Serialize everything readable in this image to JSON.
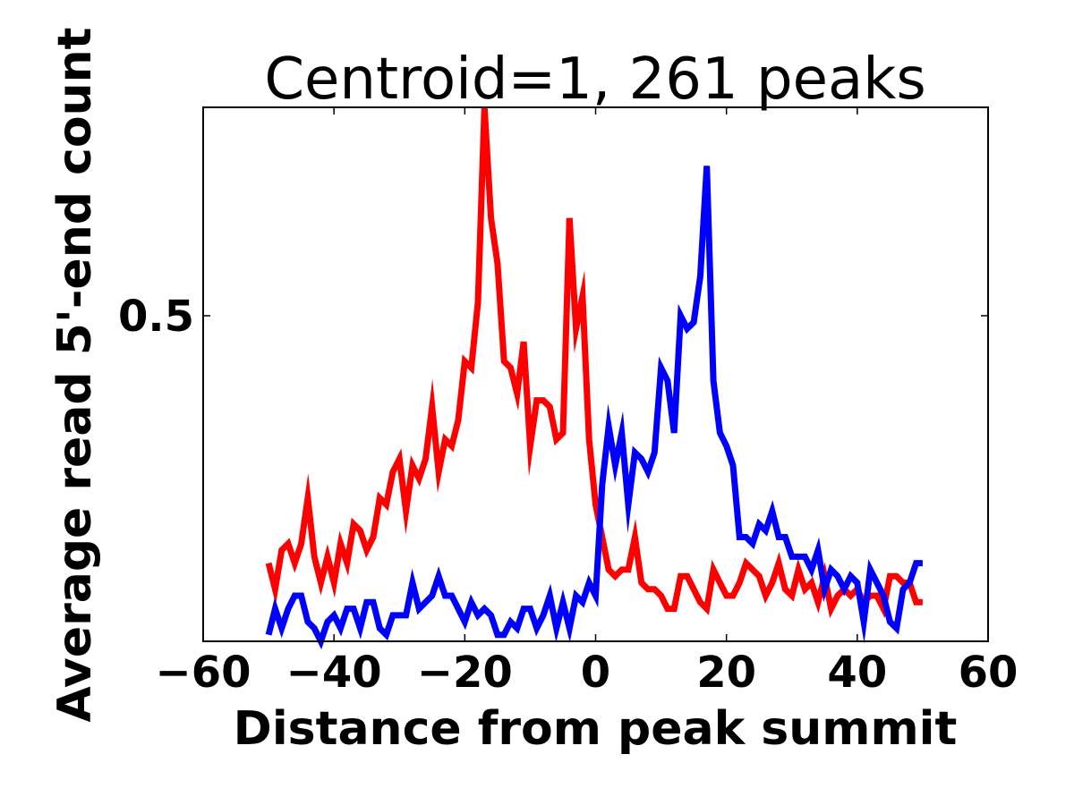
{
  "chart_data": {
    "type": "line",
    "title": "Centroid=1, 261 peaks",
    "xlabel": "Distance from peak summit",
    "ylabel": "Average read 5'-end count",
    "xlim": [
      -60,
      60
    ],
    "ylim": [
      0.0,
      0.82
    ],
    "xticks": [
      -60,
      -40,
      -20,
      0,
      20,
      40,
      60
    ],
    "xtick_labels": [
      "−60",
      "−40",
      "−20",
      "0",
      "20",
      "40",
      "60"
    ],
    "yticks": [
      0.5
    ],
    "ytick_labels": [
      "0.5"
    ],
    "grid": false,
    "legend": false,
    "x": [
      -50,
      -49,
      -48,
      -47,
      -46,
      -45,
      -44,
      -43,
      -42,
      -41,
      -40,
      -39,
      -38,
      -37,
      -36,
      -35,
      -34,
      -33,
      -32,
      -31,
      -30,
      -29,
      -28,
      -27,
      -26,
      -25,
      -24,
      -23,
      -22,
      -21,
      -20,
      -19,
      -18,
      -17,
      -16,
      -15,
      -14,
      -13,
      -12,
      -11,
      -10,
      -9,
      -8,
      -7,
      -6,
      -5,
      -4,
      -3,
      -2,
      -1,
      0,
      1,
      2,
      3,
      4,
      5,
      6,
      7,
      8,
      9,
      10,
      11,
      12,
      13,
      14,
      15,
      16,
      17,
      18,
      19,
      20,
      21,
      22,
      23,
      24,
      25,
      26,
      27,
      28,
      29,
      30,
      31,
      32,
      33,
      34,
      35,
      36,
      37,
      38,
      39,
      40,
      41,
      42,
      43,
      44,
      45,
      46,
      47,
      48,
      49,
      50
    ],
    "series": [
      {
        "color": "#ff0000",
        "values": [
          0.12,
          0.08,
          0.14,
          0.15,
          0.12,
          0.15,
          0.22,
          0.13,
          0.09,
          0.13,
          0.09,
          0.15,
          0.12,
          0.18,
          0.17,
          0.14,
          0.16,
          0.22,
          0.21,
          0.26,
          0.28,
          0.2,
          0.27,
          0.25,
          0.28,
          0.36,
          0.26,
          0.31,
          0.3,
          0.34,
          0.43,
          0.42,
          0.52,
          0.82,
          0.65,
          0.58,
          0.43,
          0.42,
          0.38,
          0.46,
          0.3,
          0.37,
          0.37,
          0.36,
          0.31,
          0.32,
          0.65,
          0.48,
          0.53,
          0.31,
          0.21,
          0.16,
          0.11,
          0.1,
          0.11,
          0.11,
          0.16,
          0.09,
          0.08,
          0.08,
          0.07,
          0.05,
          0.05,
          0.1,
          0.1,
          0.08,
          0.06,
          0.05,
          0.11,
          0.09,
          0.07,
          0.07,
          0.09,
          0.12,
          0.11,
          0.1,
          0.07,
          0.09,
          0.12,
          0.08,
          0.07,
          0.11,
          0.08,
          0.09,
          0.06,
          0.1,
          0.05,
          0.07,
          0.08,
          0.07,
          0.08,
          0.06,
          0.07,
          0.07,
          0.05,
          0.1,
          0.1,
          0.09,
          0.09,
          0.06,
          0.06
        ]
      },
      {
        "color": "#0000ff",
        "values": [
          0.01,
          0.05,
          0.02,
          0.05,
          0.07,
          0.07,
          0.03,
          0.02,
          0.0,
          0.03,
          0.04,
          0.02,
          0.05,
          0.05,
          0.02,
          0.06,
          0.06,
          0.02,
          0.01,
          0.04,
          0.04,
          0.04,
          0.09,
          0.05,
          0.06,
          0.07,
          0.1,
          0.07,
          0.07,
          0.05,
          0.03,
          0.06,
          0.04,
          0.05,
          0.04,
          0.01,
          0.01,
          0.03,
          0.02,
          0.05,
          0.05,
          0.02,
          0.04,
          0.07,
          0.02,
          0.06,
          0.02,
          0.07,
          0.06,
          0.09,
          0.07,
          0.24,
          0.33,
          0.27,
          0.32,
          0.21,
          0.29,
          0.28,
          0.26,
          0.29,
          0.42,
          0.4,
          0.32,
          0.5,
          0.48,
          0.49,
          0.56,
          0.73,
          0.4,
          0.32,
          0.3,
          0.27,
          0.16,
          0.16,
          0.15,
          0.18,
          0.17,
          0.2,
          0.16,
          0.16,
          0.13,
          0.13,
          0.13,
          0.11,
          0.14,
          0.08,
          0.11,
          0.1,
          0.08,
          0.1,
          0.09,
          0.03,
          0.11,
          0.09,
          0.07,
          0.03,
          0.02,
          0.08,
          0.09,
          0.12,
          0.12
        ]
      }
    ]
  }
}
